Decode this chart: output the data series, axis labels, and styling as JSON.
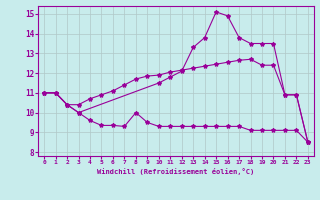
{
  "xlabel": "Windchill (Refroidissement éolien,°C)",
  "background_color": "#c8ecec",
  "line_color": "#990099",
  "grid_color": "#b0c8c8",
  "xlim": [
    -0.5,
    23.5
  ],
  "ylim": [
    7.8,
    15.4
  ],
  "xticks": [
    0,
    1,
    2,
    3,
    4,
    5,
    6,
    7,
    8,
    9,
    10,
    11,
    12,
    13,
    14,
    15,
    16,
    17,
    18,
    19,
    20,
    21,
    22,
    23
  ],
  "yticks": [
    8,
    9,
    10,
    11,
    12,
    13,
    14,
    15
  ],
  "line1_x": [
    0,
    1,
    2,
    3,
    4,
    5,
    6,
    7,
    8,
    9,
    10,
    11,
    12,
    13,
    14,
    15,
    16,
    17,
    18,
    19,
    20,
    21,
    22,
    23
  ],
  "line1_y": [
    11.0,
    11.0,
    10.4,
    10.0,
    9.6,
    9.35,
    9.35,
    9.3,
    10.0,
    9.5,
    9.3,
    9.3,
    9.3,
    9.3,
    9.3,
    9.3,
    9.3,
    9.3,
    9.1,
    9.1,
    9.1,
    9.1,
    9.1,
    8.5
  ],
  "line2_x": [
    0,
    1,
    2,
    3,
    4,
    5,
    6,
    7,
    8,
    9,
    10,
    11,
    12,
    13,
    14,
    15,
    16,
    17,
    18,
    19,
    20,
    21,
    22,
    23
  ],
  "line2_y": [
    11.0,
    11.0,
    10.4,
    10.4,
    10.7,
    10.9,
    11.1,
    11.4,
    11.7,
    11.85,
    11.9,
    12.05,
    12.15,
    12.25,
    12.35,
    12.45,
    12.55,
    12.65,
    12.7,
    12.4,
    12.4,
    10.9,
    10.9,
    8.5
  ],
  "line3_x": [
    0,
    1,
    2,
    3,
    10,
    11,
    12,
    13,
    14,
    15,
    16,
    17,
    18,
    19,
    20,
    21,
    22,
    23
  ],
  "line3_y": [
    11.0,
    11.0,
    10.4,
    10.0,
    11.5,
    11.8,
    12.1,
    13.3,
    13.8,
    15.1,
    14.9,
    13.8,
    13.5,
    13.5,
    13.5,
    10.9,
    10.9,
    8.5
  ]
}
